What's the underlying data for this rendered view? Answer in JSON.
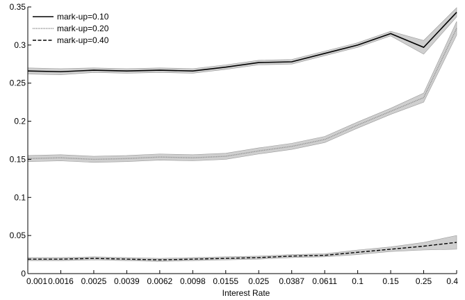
{
  "chart_data": {
    "type": "line",
    "xlabel": "Interest Rate",
    "ylabel": "",
    "ylim": [
      0,
      0.35
    ],
    "y_ticks": [
      "0",
      "0.05",
      "0.1",
      "0.15",
      "0.2",
      "0.25",
      "0.3",
      "0.35"
    ],
    "y_tick_values": [
      0,
      0.05,
      0.1,
      0.15,
      0.2,
      0.25,
      0.3,
      0.35
    ],
    "categories": [
      "0.001",
      "0.0016",
      "0.0025",
      "0.0039",
      "0.0062",
      "0.0098",
      "0.0155",
      "0.025",
      "0.0387",
      "0.0611",
      "0.1",
      "0.15",
      "0.25",
      "0.4"
    ],
    "legend_position": "top-left",
    "grid": false,
    "band_color": "#cfcfcf",
    "series": [
      {
        "name": "mark-up=0.10",
        "style": "solid",
        "color": "#000000",
        "values": [
          0.266,
          0.265,
          0.267,
          0.266,
          0.267,
          0.266,
          0.271,
          0.277,
          0.278,
          0.289,
          0.3,
          0.315,
          0.297,
          0.343
        ],
        "band": [
          0.004,
          0.004,
          0.003,
          0.003,
          0.003,
          0.003,
          0.003,
          0.003,
          0.003,
          0.003,
          0.003,
          0.003,
          0.009,
          0.006
        ]
      },
      {
        "name": "mark-up=0.20",
        "style": "dotted",
        "color": "#8a8a8a",
        "values": [
          0.151,
          0.152,
          0.15,
          0.151,
          0.153,
          0.152,
          0.154,
          0.161,
          0.167,
          0.176,
          0.195,
          0.213,
          0.231,
          0.322
        ],
        "band": [
          0.004,
          0.004,
          0.004,
          0.004,
          0.004,
          0.004,
          0.004,
          0.004,
          0.004,
          0.004,
          0.004,
          0.004,
          0.006,
          0.009
        ]
      },
      {
        "name": "mark-up=0.40",
        "style": "dashed",
        "color": "#000000",
        "values": [
          0.019,
          0.019,
          0.02,
          0.019,
          0.018,
          0.019,
          0.02,
          0.021,
          0.023,
          0.024,
          0.028,
          0.032,
          0.036,
          0.041
        ],
        "band": [
          0.002,
          0.002,
          0.002,
          0.002,
          0.002,
          0.002,
          0.002,
          0.002,
          0.002,
          0.002,
          0.003,
          0.003,
          0.005,
          0.009
        ]
      }
    ]
  }
}
